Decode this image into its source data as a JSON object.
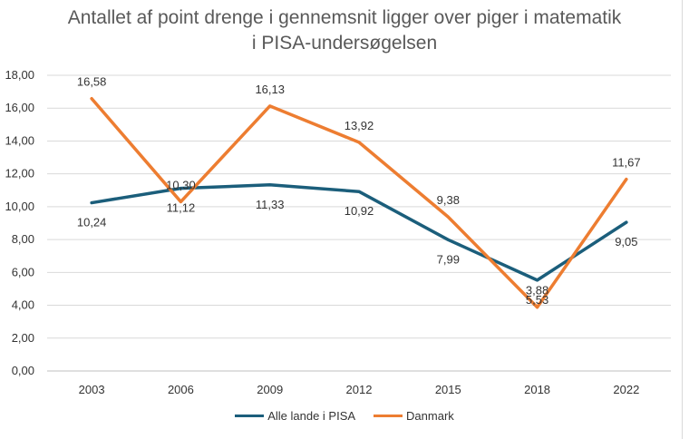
{
  "chart_data": {
    "type": "line",
    "title_lines": [
      "Antallet af point drenge i gennemsnit ligger over piger i matematik",
      "i PISA-undersøgelsen"
    ],
    "xlabel": "",
    "ylabel": "",
    "categories": [
      "2003",
      "2006",
      "2009",
      "2012",
      "2015",
      "2018",
      "2022"
    ],
    "ylim": [
      0,
      18
    ],
    "ytick_labels": [
      "0,00",
      "2,00",
      "4,00",
      "6,00",
      "8,00",
      "10,00",
      "12,00",
      "14,00",
      "16,00",
      "18,00"
    ],
    "grid": true,
    "legend_position": "bottom",
    "series": [
      {
        "name": "Alle lande i PISA",
        "color": "#1b5e7b",
        "values": [
          10.24,
          11.12,
          11.33,
          10.92,
          7.99,
          5.53,
          9.05
        ],
        "labels": [
          "10,24",
          "11,12",
          "11,33",
          "10,92",
          "7,99",
          "5,53",
          "9,05"
        ]
      },
      {
        "name": "Danmark",
        "color": "#ed7d31",
        "values": [
          16.58,
          10.3,
          16.13,
          13.92,
          9.38,
          3.88,
          11.67
        ],
        "labels": [
          "16,58",
          "10,30",
          "16,13",
          "13,92",
          "9,38",
          "3,88",
          "11,67"
        ]
      }
    ]
  }
}
